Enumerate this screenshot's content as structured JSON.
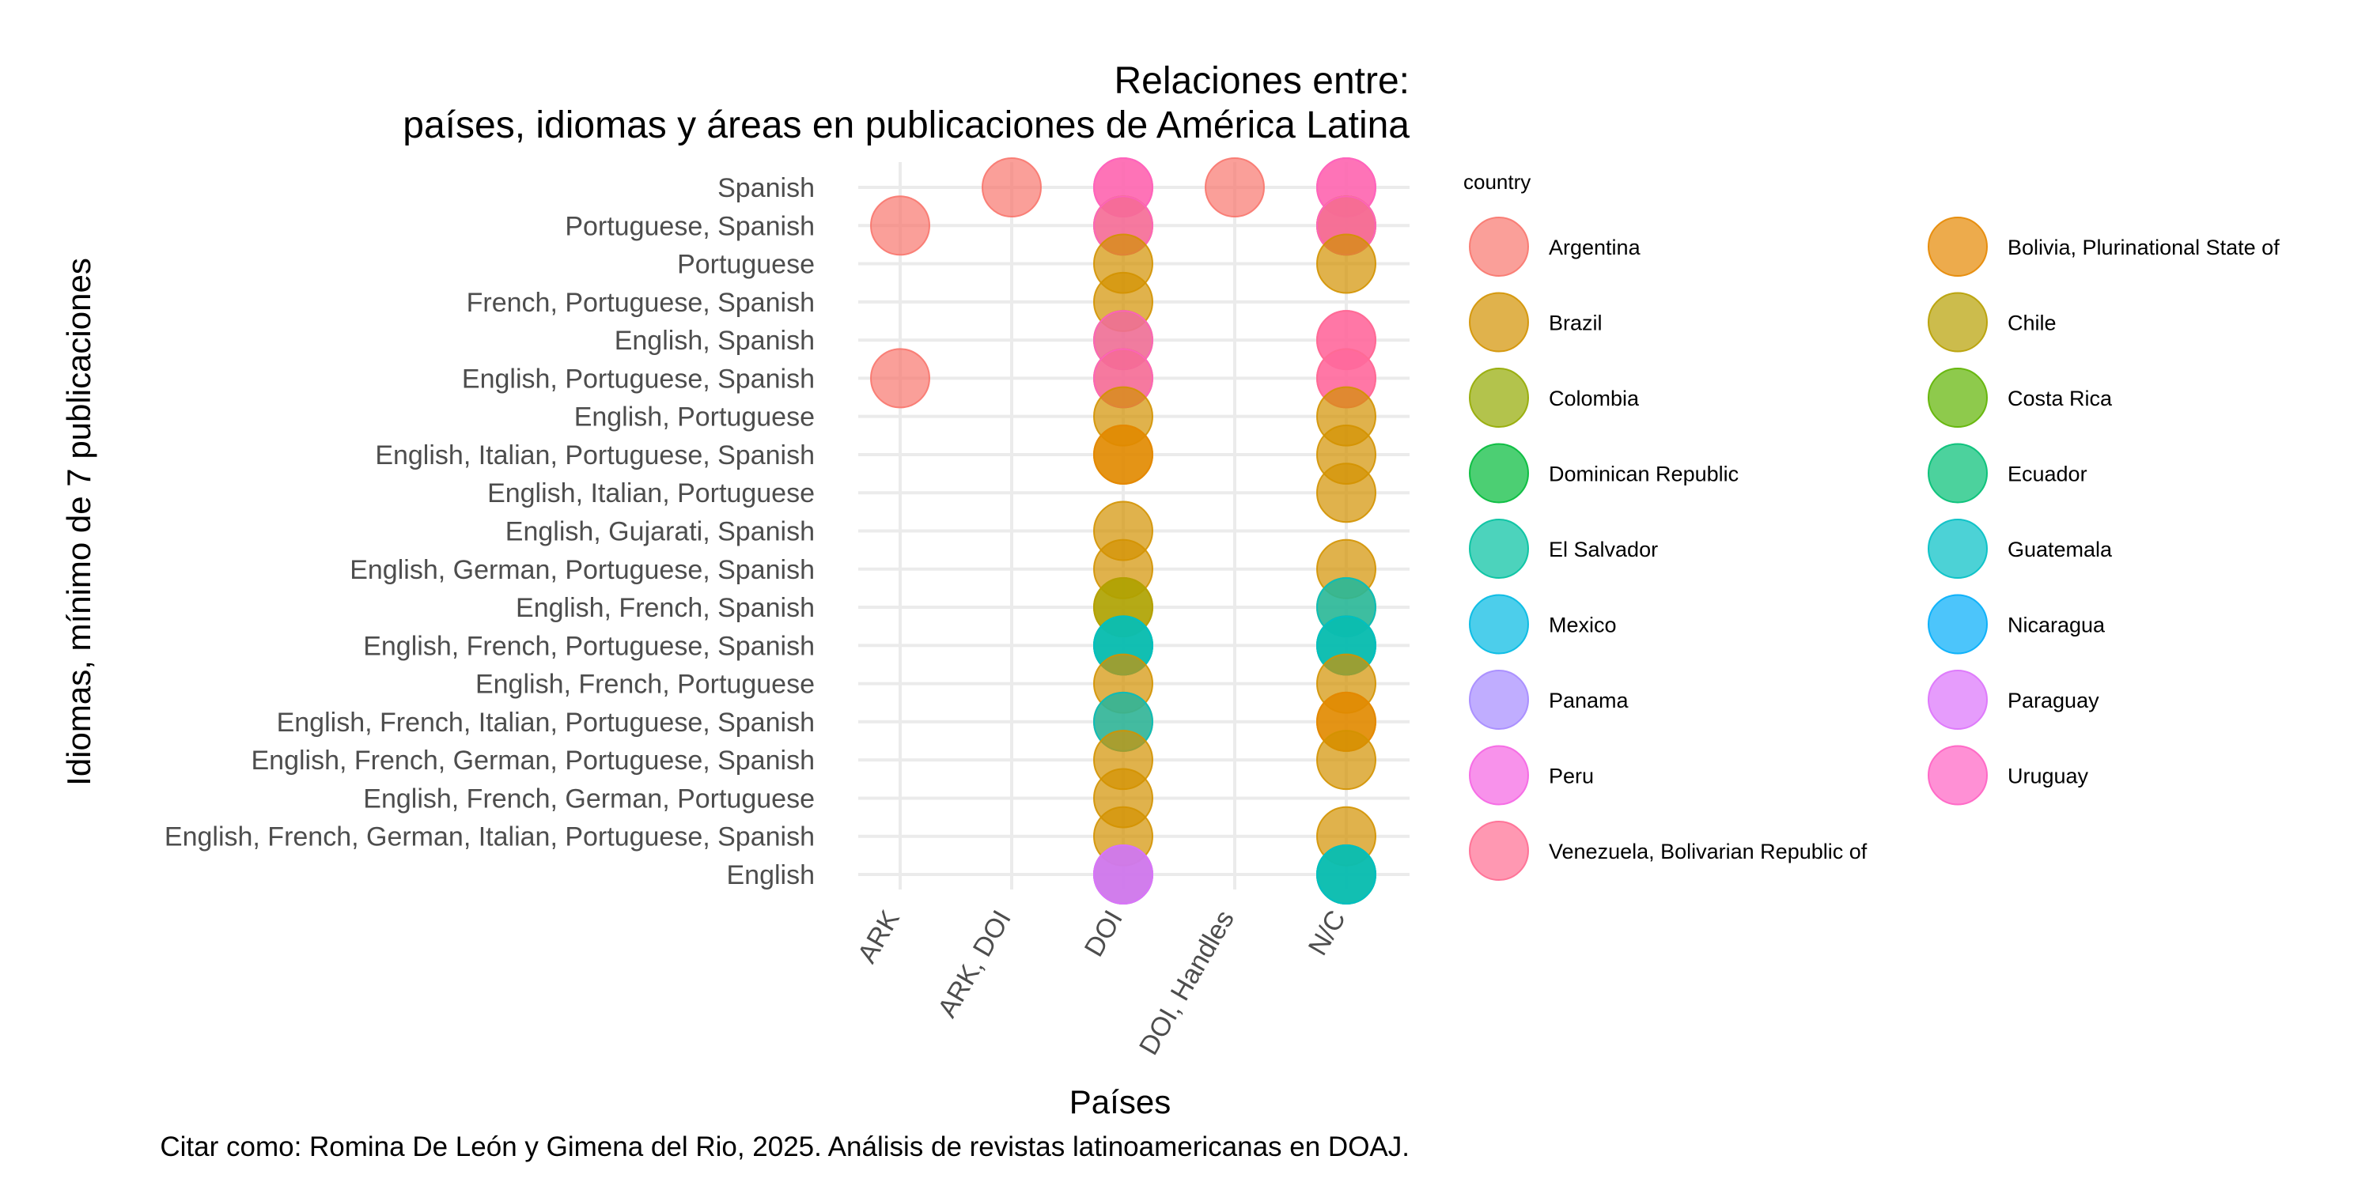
{
  "chart_data": {
    "type": "scatter",
    "title_line1": "Relaciones entre:",
    "title_line2": "países, idiomas y áreas en publicaciones de América Latina",
    "xlabel": "Países",
    "ylabel": "Idiomas, mínimo de 7 publicaciones",
    "caption": "Citar como: Romina De León y Gimena del Rio, 2025. Análisis de revistas latinoamericanas en DOAJ.",
    "x_categories": [
      "ARK",
      "ARK, DOI",
      "DOI",
      "DOI, Handles",
      "N/C"
    ],
    "y_categories": [
      "English",
      "English, French, German, Italian, Portuguese, Spanish",
      "English, French, German, Portuguese",
      "English, French, German, Portuguese, Spanish",
      "English, French, Italian, Portuguese, Spanish",
      "English, French, Portuguese",
      "English, French, Portuguese, Spanish",
      "English, French, Spanish",
      "English, German, Portuguese, Spanish",
      "English, Gujarati, Spanish",
      "English, Italian, Portuguese",
      "English, Italian, Portuguese, Spanish",
      "English, Portuguese",
      "English, Portuguese, Spanish",
      "English, Spanish",
      "French, Portuguese, Spanish",
      "Portuguese",
      "Portuguese, Spanish",
      "Spanish"
    ],
    "legend": {
      "title": "country",
      "position": "right",
      "columns": 2,
      "entries": [
        {
          "name": "Argentina",
          "color": "#F8766D"
        },
        {
          "name": "Bolivia, Plurinational State of",
          "color": "#E58700"
        },
        {
          "name": "Brazil",
          "color": "#D39200"
        },
        {
          "name": "Chile",
          "color": "#B79F00"
        },
        {
          "name": "Colombia",
          "color": "#93AA00"
        },
        {
          "name": "Costa Rica",
          "color": "#5EB300"
        },
        {
          "name": "Dominican Republic",
          "color": "#00BA38"
        },
        {
          "name": "Ecuador",
          "color": "#00BF74"
        },
        {
          "name": "El Salvador",
          "color": "#00C19F"
        },
        {
          "name": "Guatemala",
          "color": "#00BFC4"
        },
        {
          "name": "Mexico",
          "color": "#00B9E3"
        },
        {
          "name": "Nicaragua",
          "color": "#00ADFA"
        },
        {
          "name": "Panama",
          "color": "#A58AFF"
        },
        {
          "name": "Paraguay",
          "color": "#DB72FB"
        },
        {
          "name": "Peru",
          "color": "#F564E3"
        },
        {
          "name": "Uruguay",
          "color": "#FF61C3"
        },
        {
          "name": "Venezuela, Bolivarian Republic of",
          "color": "#FF6C91"
        }
      ]
    },
    "points": [
      {
        "x": "ARK",
        "y": "Portuguese, Spanish",
        "country": "Argentina"
      },
      {
        "x": "ARK",
        "y": "English, Portuguese, Spanish",
        "country": "Argentina"
      },
      {
        "x": "ARK, DOI",
        "y": "Spanish",
        "country": "Argentina"
      },
      {
        "x": "DOI, Handles",
        "y": "Spanish",
        "country": "Argentina"
      },
      {
        "x": "DOI",
        "y": "Spanish",
        "country": "Argentina"
      },
      {
        "x": "DOI",
        "y": "Spanish",
        "country": "Uruguay"
      },
      {
        "x": "DOI",
        "y": "Portuguese, Spanish",
        "country": "Brazil"
      },
      {
        "x": "DOI",
        "y": "Portuguese, Spanish",
        "country": "Uruguay"
      },
      {
        "x": "DOI",
        "y": "Portuguese",
        "country": "Brazil"
      },
      {
        "x": "DOI",
        "y": "French, Portuguese, Spanish",
        "country": "Brazil"
      },
      {
        "x": "DOI",
        "y": "English, Spanish",
        "country": "Chile"
      },
      {
        "x": "DOI",
        "y": "English, Spanish",
        "country": "Uruguay"
      },
      {
        "x": "DOI",
        "y": "English, Portuguese, Spanish",
        "country": "Brazil"
      },
      {
        "x": "DOI",
        "y": "English, Portuguese, Spanish",
        "country": "Uruguay"
      },
      {
        "x": "DOI",
        "y": "English, Portuguese",
        "country": "Brazil"
      },
      {
        "x": "DOI",
        "y": "English, Italian, Portuguese, Spanish",
        "country": "Brazil"
      },
      {
        "x": "DOI",
        "y": "English, Italian, Portuguese, Spanish",
        "country": "Bolivia, Plurinational State of"
      },
      {
        "x": "DOI",
        "y": "English, Gujarati, Spanish",
        "country": "Brazil"
      },
      {
        "x": "DOI",
        "y": "English, German, Portuguese, Spanish",
        "country": "Brazil"
      },
      {
        "x": "DOI",
        "y": "English, French, Spanish",
        "country": "Colombia"
      },
      {
        "x": "DOI",
        "y": "English, French, Spanish",
        "country": "Chile"
      },
      {
        "x": "DOI",
        "y": "English, French, Portuguese, Spanish",
        "country": "Chile"
      },
      {
        "x": "DOI",
        "y": "English, French, Portuguese, Spanish",
        "country": "El Salvador"
      },
      {
        "x": "DOI",
        "y": "English, French, Portuguese, Spanish",
        "country": "Guatemala"
      },
      {
        "x": "DOI",
        "y": "English, French, Portuguese",
        "country": "Brazil"
      },
      {
        "x": "DOI",
        "y": "English, French, Italian, Portuguese, Spanish",
        "country": "Brazil"
      },
      {
        "x": "DOI",
        "y": "English, French, Italian, Portuguese, Spanish",
        "country": "Guatemala"
      },
      {
        "x": "DOI",
        "y": "English, French, German, Portuguese, Spanish",
        "country": "Brazil"
      },
      {
        "x": "DOI",
        "y": "English, French, German, Portuguese",
        "country": "Brazil"
      },
      {
        "x": "DOI",
        "y": "English, French, German, Italian, Portuguese, Spanish",
        "country": "Brazil"
      },
      {
        "x": "DOI",
        "y": "English",
        "country": "Brazil"
      },
      {
        "x": "DOI",
        "y": "English",
        "country": "Panama"
      },
      {
        "x": "DOI",
        "y": "English",
        "country": "Paraguay"
      },
      {
        "x": "N/C",
        "y": "Spanish",
        "country": "Argentina"
      },
      {
        "x": "N/C",
        "y": "Spanish",
        "country": "Uruguay"
      },
      {
        "x": "N/C",
        "y": "Portuguese, Spanish",
        "country": "Argentina"
      },
      {
        "x": "N/C",
        "y": "Portuguese, Spanish",
        "country": "Brazil"
      },
      {
        "x": "N/C",
        "y": "Portuguese, Spanish",
        "country": "Uruguay"
      },
      {
        "x": "N/C",
        "y": "Portuguese",
        "country": "Brazil"
      },
      {
        "x": "N/C",
        "y": "English, Spanish",
        "country": "Uruguay"
      },
      {
        "x": "N/C",
        "y": "English, Spanish",
        "country": "Venezuela, Bolivarian Republic of"
      },
      {
        "x": "N/C",
        "y": "English, Portuguese, Spanish",
        "country": "Uruguay"
      },
      {
        "x": "N/C",
        "y": "English, Portuguese, Spanish",
        "country": "Venezuela, Bolivarian Republic of"
      },
      {
        "x": "N/C",
        "y": "English, Portuguese",
        "country": "Brazil"
      },
      {
        "x": "N/C",
        "y": "English, Italian, Portuguese, Spanish",
        "country": "Brazil"
      },
      {
        "x": "N/C",
        "y": "English, Italian, Portuguese",
        "country": "Brazil"
      },
      {
        "x": "N/C",
        "y": "English, German, Portuguese, Spanish",
        "country": "Brazil"
      },
      {
        "x": "N/C",
        "y": "English, French, Spanish",
        "country": "Chile"
      },
      {
        "x": "N/C",
        "y": "English, French, Spanish",
        "country": "Guatemala"
      },
      {
        "x": "N/C",
        "y": "English, French, Portuguese, Spanish",
        "country": "Chile"
      },
      {
        "x": "N/C",
        "y": "English, French, Portuguese, Spanish",
        "country": "El Salvador"
      },
      {
        "x": "N/C",
        "y": "English, French, Portuguese, Spanish",
        "country": "Guatemala"
      },
      {
        "x": "N/C",
        "y": "English, French, Portuguese",
        "country": "Brazil"
      },
      {
        "x": "N/C",
        "y": "English, French, Italian, Portuguese, Spanish",
        "country": "Brazil"
      },
      {
        "x": "N/C",
        "y": "English, French, Italian, Portuguese, Spanish",
        "country": "Bolivia, Plurinational State of"
      },
      {
        "x": "N/C",
        "y": "English, French, German, Portuguese, Spanish",
        "country": "Brazil"
      },
      {
        "x": "N/C",
        "y": "English, French, German, Italian, Portuguese, Spanish",
        "country": "Brazil"
      },
      {
        "x": "N/C",
        "y": "English",
        "country": "Chile"
      },
      {
        "x": "N/C",
        "y": "English",
        "country": "El Salvador"
      },
      {
        "x": "N/C",
        "y": "English",
        "country": "Guatemala"
      }
    ],
    "grid": true,
    "alpha": 0.7
  }
}
